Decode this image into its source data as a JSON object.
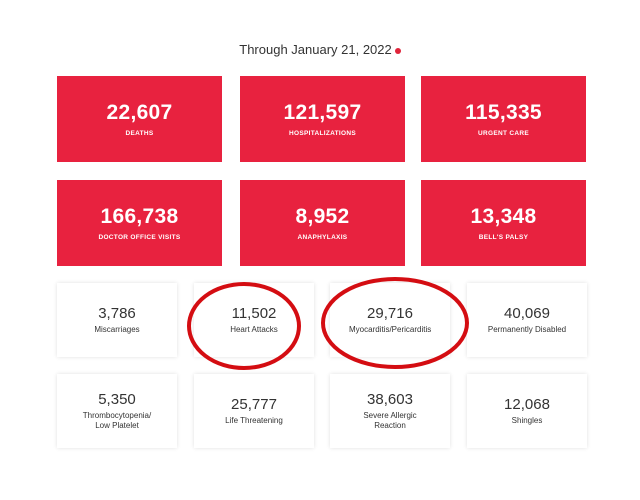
{
  "header": {
    "title": "Through January 21, 2022"
  },
  "red_cards": [
    {
      "number": "22,607",
      "label": "DEATHS"
    },
    {
      "number": "121,597",
      "label": "HOSPITALIZATIONS"
    },
    {
      "number": "115,335",
      "label": "URGENT CARE"
    },
    {
      "number": "166,738",
      "label": "DOCTOR OFFICE VISITS"
    },
    {
      "number": "8,952",
      "label": "ANAPHYLAXIS"
    },
    {
      "number": "13,348",
      "label": "BELL'S PALSY"
    }
  ],
  "white_cards": [
    {
      "number": "3,786",
      "label": "Miscarriages"
    },
    {
      "number": "11,502",
      "label": "Heart Attacks"
    },
    {
      "number": "29,716",
      "label": "Myocarditis/Pericarditis"
    },
    {
      "number": "40,069",
      "label": "Permanently Disabled"
    },
    {
      "number": "5,350",
      "label": "Thrombocytopenia/ Low Platelet"
    },
    {
      "number": "25,777",
      "label": "Life Threatening"
    },
    {
      "number": "38,603",
      "label": "Severe Allergic Reaction"
    },
    {
      "number": "12,068",
      "label": "Shingles"
    }
  ]
}
